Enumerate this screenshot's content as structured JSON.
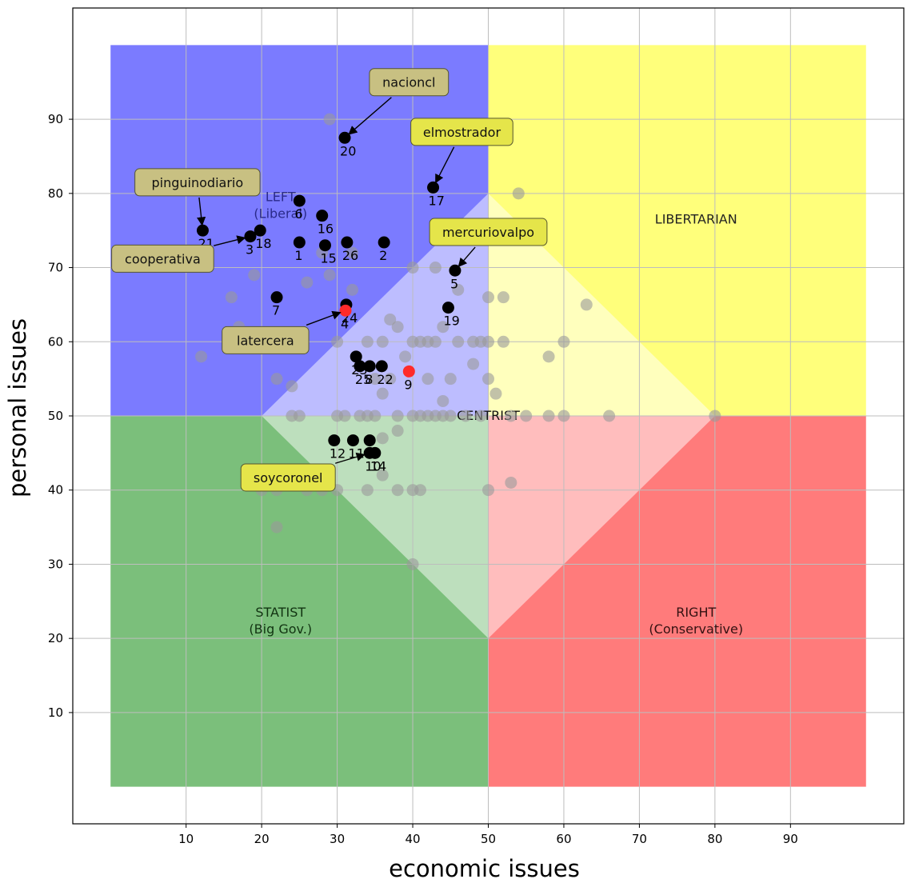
{
  "chart_data": {
    "type": "scatter",
    "title": "",
    "xlabel": "economic issues",
    "ylabel": "personal issues",
    "xlim": [
      -5,
      105
    ],
    "ylim": [
      -5,
      105
    ],
    "xticks": [
      10,
      20,
      30,
      40,
      50,
      60,
      70,
      80,
      90
    ],
    "yticks": [
      10,
      20,
      30,
      40,
      50,
      60,
      70,
      80,
      90
    ],
    "grid": true,
    "regions": [
      {
        "name": "LEFT",
        "color": "#7b7bff",
        "polygon": [
          [
            0,
            50
          ],
          [
            50,
            50
          ],
          [
            50,
            100
          ],
          [
            0,
            100
          ]
        ]
      },
      {
        "name": "LIBERTARIAN",
        "color": "#ffff7b",
        "polygon": [
          [
            50,
            50
          ],
          [
            100,
            50
          ],
          [
            100,
            100
          ],
          [
            50,
            100
          ]
        ]
      },
      {
        "name": "STATIST",
        "color": "#7bbf7b",
        "polygon": [
          [
            0,
            0
          ],
          [
            50,
            0
          ],
          [
            50,
            50
          ],
          [
            0,
            50
          ]
        ]
      },
      {
        "name": "RIGHT",
        "color": "#ff7b7b",
        "polygon": [
          [
            50,
            0
          ],
          [
            100,
            0
          ],
          [
            100,
            50
          ],
          [
            50,
            50
          ]
        ]
      },
      {
        "name": "CENTRIST",
        "color": "#ffffff",
        "opacity": 0.5,
        "polygon": [
          [
            50,
            80
          ],
          [
            80,
            50
          ],
          [
            50,
            20
          ],
          [
            20,
            50
          ]
        ]
      }
    ],
    "region_labels": [
      {
        "lines": [
          "LEFT",
          "(Liberal)"
        ],
        "x": 22.5,
        "y": 78.5,
        "color": "#2a2a8a"
      },
      {
        "lines": [
          "LIBERTARIAN"
        ],
        "x": 77.5,
        "y": 76.5,
        "color": "#222222"
      },
      {
        "lines": [
          "STATIST",
          "(Big Gov.)"
        ],
        "x": 22.5,
        "y": 22.5,
        "color": "#113311"
      },
      {
        "lines": [
          "RIGHT",
          "(Conservative)"
        ],
        "x": 77.5,
        "y": 22.5,
        "color": "#331111"
      },
      {
        "lines": [
          "CENTRIST"
        ],
        "x": 50,
        "y": 50,
        "color": "#111111"
      }
    ],
    "series": [
      {
        "color": "#999999",
        "opacity": 0.6,
        "points": [
          [
            12,
            58
          ],
          [
            16,
            66
          ],
          [
            17,
            62
          ],
          [
            19,
            69
          ],
          [
            22,
            55
          ],
          [
            23,
            60
          ],
          [
            24,
            54
          ],
          [
            25,
            50
          ],
          [
            26,
            68
          ],
          [
            28,
            72
          ],
          [
            29,
            90
          ],
          [
            29,
            69
          ],
          [
            30,
            50
          ],
          [
            30,
            60
          ],
          [
            31,
            50
          ],
          [
            32,
            72
          ],
          [
            32,
            67
          ],
          [
            33,
            50
          ],
          [
            34,
            50
          ],
          [
            34,
            60
          ],
          [
            35,
            50
          ],
          [
            35,
            55
          ],
          [
            36,
            53
          ],
          [
            36,
            60
          ],
          [
            37,
            55
          ],
          [
            37,
            63
          ],
          [
            38,
            62
          ],
          [
            38,
            50
          ],
          [
            39,
            58
          ],
          [
            40,
            50
          ],
          [
            40,
            60
          ],
          [
            40,
            70
          ],
          [
            41,
            50
          ],
          [
            41,
            60
          ],
          [
            42,
            50
          ],
          [
            42,
            60
          ],
          [
            42,
            55
          ],
          [
            43,
            50
          ],
          [
            43,
            60
          ],
          [
            43,
            70
          ],
          [
            44,
            50
          ],
          [
            44,
            52
          ],
          [
            44,
            62
          ],
          [
            45,
            50
          ],
          [
            45,
            55
          ],
          [
            46,
            60
          ],
          [
            46,
            67
          ],
          [
            47,
            50
          ],
          [
            48,
            60
          ],
          [
            48,
            57
          ],
          [
            49,
            60
          ],
          [
            49,
            50
          ],
          [
            50,
            55
          ],
          [
            50,
            60
          ],
          [
            50,
            66
          ],
          [
            51,
            53
          ],
          [
            52,
            60
          ],
          [
            52,
            66
          ],
          [
            53,
            50
          ],
          [
            54,
            80
          ],
          [
            55,
            50
          ],
          [
            58,
            58
          ],
          [
            58,
            50
          ],
          [
            60,
            50
          ],
          [
            60,
            60
          ],
          [
            63,
            65
          ],
          [
            66,
            50
          ],
          [
            80,
            50
          ],
          [
            22,
            40
          ],
          [
            26,
            40
          ],
          [
            28,
            40
          ],
          [
            30,
            40
          ],
          [
            34,
            40
          ],
          [
            36,
            42
          ],
          [
            38,
            40
          ],
          [
            40,
            40
          ],
          [
            41,
            40
          ],
          [
            22,
            35
          ],
          [
            40,
            30
          ],
          [
            50,
            40
          ],
          [
            53,
            41
          ],
          [
            38,
            48
          ],
          [
            36,
            47
          ],
          [
            20,
            40
          ],
          [
            24,
            50
          ]
        ]
      },
      {
        "color": "#000000",
        "points": [
          {
            "x": 12.2,
            "y": 75,
            "label": "21"
          },
          {
            "x": 25,
            "y": 79,
            "label": "6"
          },
          {
            "x": 28,
            "y": 77,
            "label": "16"
          },
          {
            "x": 19.8,
            "y": 75,
            "label": "18"
          },
          {
            "x": 18.5,
            "y": 74.2,
            "label": "3"
          },
          {
            "x": 25,
            "y": 73.4,
            "label": "1"
          },
          {
            "x": 28.4,
            "y": 73,
            "label": "15"
          },
          {
            "x": 31.3,
            "y": 73.4,
            "label": "26"
          },
          {
            "x": 36.2,
            "y": 73.4,
            "label": "2"
          },
          {
            "x": 31,
            "y": 87.5,
            "label": "20"
          },
          {
            "x": 42.7,
            "y": 80.8,
            "label": "17"
          },
          {
            "x": 45.6,
            "y": 69.6,
            "label": "5"
          },
          {
            "x": 44.7,
            "y": 64.6,
            "label": "19"
          },
          {
            "x": 22,
            "y": 66,
            "label": "7"
          },
          {
            "x": 31.2,
            "y": 65,
            "label": "24"
          },
          {
            "x": 32.5,
            "y": 58,
            "label": "23"
          },
          {
            "x": 33,
            "y": 56.7,
            "label": "25"
          },
          {
            "x": 34.3,
            "y": 56.7,
            "label": "8"
          },
          {
            "x": 35.9,
            "y": 56.7,
            "label": "22"
          },
          {
            "x": 29.6,
            "y": 46.7,
            "label": "12"
          },
          {
            "x": 32.1,
            "y": 46.7,
            "label": "11"
          },
          {
            "x": 34.3,
            "y": 46.7,
            "label": "13"
          },
          {
            "x": 34.3,
            "y": 45,
            "label": "10"
          },
          {
            "x": 35,
            "y": 45,
            "label": "14"
          }
        ]
      },
      {
        "color": "#ff2a2a",
        "points": [
          {
            "x": 31.1,
            "y": 64.2,
            "label": "4"
          },
          {
            "x": 39.5,
            "y": 56,
            "label": "9"
          }
        ]
      }
    ],
    "annotations": [
      {
        "text": "nacioncl",
        "x": 31,
        "y": 87.5,
        "text_x": 39.5,
        "text_y": 95,
        "style": "olive"
      },
      {
        "text": "elmostrador",
        "x": 42.7,
        "y": 80.8,
        "text_x": 46.5,
        "text_y": 88.3,
        "style": "yellow"
      },
      {
        "text": "pinguinodiario",
        "x": 12.2,
        "y": 75,
        "text_x": 11.5,
        "text_y": 81.5,
        "style": "olive"
      },
      {
        "text": "cooperativa",
        "x": 18.5,
        "y": 74.2,
        "text_x": 6.9,
        "text_y": 71.2,
        "style": "olive"
      },
      {
        "text": "mercuriovalpo",
        "x": 45.6,
        "y": 69.6,
        "text_x": 50,
        "text_y": 74.8,
        "style": "yellow"
      },
      {
        "text": "latercera",
        "x": 31.1,
        "y": 64.2,
        "text_x": 20.5,
        "text_y": 60.2,
        "style": "olive"
      },
      {
        "text": "soycoronel",
        "x": 34.3,
        "y": 45,
        "text_x": 23.5,
        "text_y": 41.7,
        "style": "yellow"
      }
    ],
    "colors": {
      "olive_box": "#c8c082",
      "yellow_box": "#e5e54a",
      "box_border": "#555530",
      "grid": "#bdbdbd"
    }
  }
}
